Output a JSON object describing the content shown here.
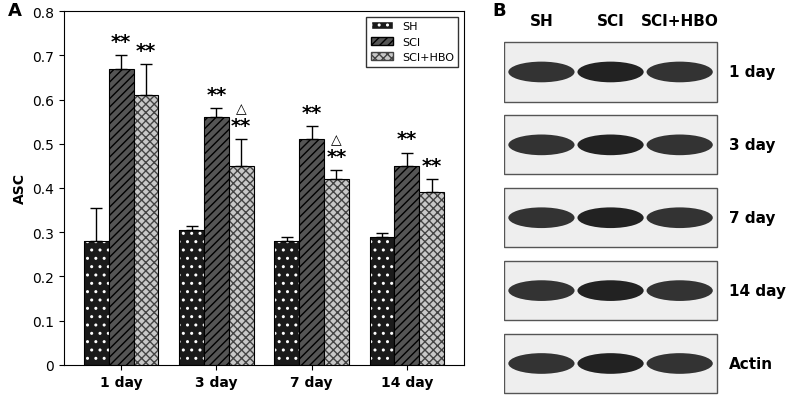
{
  "chart_data": {
    "type": "bar",
    "panel": "A",
    "y_label": "ASC",
    "categories": [
      "1 day",
      "3 day",
      "7 day",
      "14 day"
    ],
    "series": [
      {
        "name": "SH",
        "color": "#1a1a1a",
        "values": [
          0.28,
          0.305,
          0.28,
          0.29
        ],
        "errors": [
          0.075,
          0.01,
          0.008,
          0.008
        ]
      },
      {
        "name": "SCI",
        "color": "#555555",
        "values": [
          0.67,
          0.56,
          0.51,
          0.45
        ],
        "errors": [
          0.03,
          0.02,
          0.03,
          0.03
        ]
      },
      {
        "name": "SCI+HBO",
        "color": "#c8c8c8",
        "values": [
          0.61,
          0.45,
          0.42,
          0.39
        ],
        "errors": [
          0.07,
          0.06,
          0.02,
          0.03
        ]
      }
    ],
    "annotations": [
      {
        "text": "**",
        "category": "1 day",
        "series": "SCI"
      },
      {
        "text": "**",
        "category": "1 day",
        "series": "SCI+HBO"
      },
      {
        "text": "**",
        "category": "3 day",
        "series": "SCI"
      },
      {
        "text": "**",
        "category": "3 day",
        "series": "SCI+HBO"
      },
      {
        "text": "△",
        "category": "3 day",
        "series": "SCI+HBO"
      },
      {
        "text": "**",
        "category": "7 day",
        "series": "SCI"
      },
      {
        "text": "**",
        "category": "7 day",
        "series": "SCI+HBO"
      },
      {
        "text": "△",
        "category": "7 day",
        "series": "SCI+HBO"
      },
      {
        "text": "**",
        "category": "14 day",
        "series": "SCI"
      },
      {
        "text": "**",
        "category": "14 day",
        "series": "SCI+HBO"
      }
    ],
    "ylim": [
      0,
      0.8
    ],
    "yticks": [
      0,
      0.1,
      0.2,
      0.3,
      0.4,
      0.5,
      0.6,
      0.7,
      0.8
    ],
    "legend": "upper right"
  },
  "blot": {
    "panel": "B",
    "lanes": [
      "SH",
      "SCI",
      "SCI+HBO"
    ],
    "rows": [
      "1 day",
      "3 day",
      "7 day",
      "14 day",
      "Actin"
    ]
  }
}
